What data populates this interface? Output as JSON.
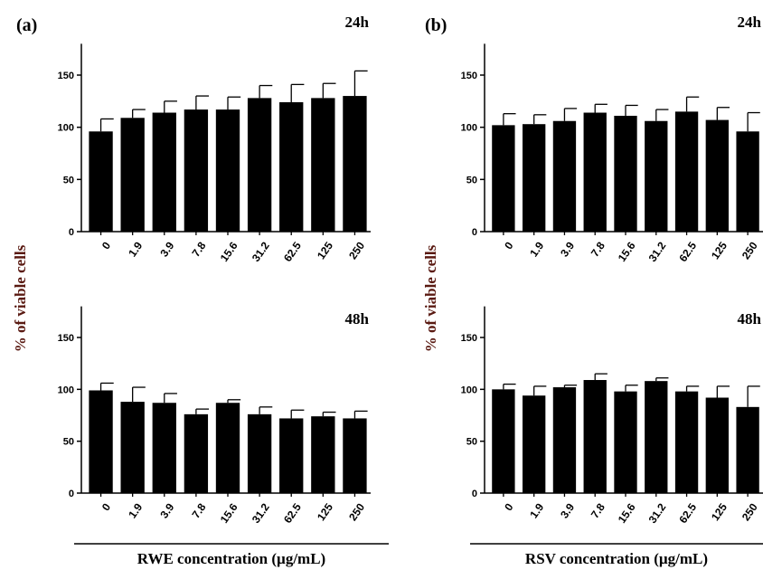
{
  "chart_data": [
    {
      "type": "bar",
      "panel": "(a)",
      "timepoint": "24h",
      "categories": [
        "0",
        "1.9",
        "3.9",
        "7.8",
        "15.6",
        "31.2",
        "62.5",
        "125",
        "250"
      ],
      "values": [
        96,
        109,
        114,
        117,
        117,
        128,
        124,
        128,
        130
      ],
      "errors": [
        12,
        8,
        11,
        13,
        12,
        12,
        17,
        14,
        24
      ],
      "ylabel": "% of viable cells",
      "yticks": [
        0,
        50,
        100,
        150
      ],
      "ylim": [
        0,
        180
      ],
      "color": "#000000"
    },
    {
      "type": "bar",
      "panel": "(b)",
      "timepoint": "24h",
      "categories": [
        "0",
        "1.9",
        "3.9",
        "7.8",
        "15.6",
        "31.2",
        "62.5",
        "125",
        "250"
      ],
      "values": [
        102,
        103,
        106,
        114,
        111,
        106,
        115,
        107,
        96
      ],
      "errors": [
        11,
        9,
        12,
        8,
        10,
        11,
        14,
        12,
        18
      ],
      "ylabel": "% of viable cells",
      "yticks": [
        0,
        50,
        100,
        150
      ],
      "ylim": [
        0,
        180
      ],
      "color": "#000000"
    },
    {
      "type": "bar",
      "panel": "(a)",
      "timepoint": "48h",
      "categories": [
        "0",
        "1.9",
        "3.9",
        "7.8",
        "15.6",
        "31.2",
        "62.5",
        "125",
        "250"
      ],
      "values": [
        99,
        88,
        87,
        76,
        87,
        76,
        72,
        74,
        72
      ],
      "errors": [
        7,
        14,
        9,
        5,
        3,
        7,
        8,
        4,
        7
      ],
      "xlabel": "RWE concentration (µg/mL)",
      "yticks": [
        0,
        50,
        100,
        150
      ],
      "ylim": [
        0,
        180
      ],
      "color": "#000000"
    },
    {
      "type": "bar",
      "panel": "(b)",
      "timepoint": "48h",
      "categories": [
        "0",
        "1.9",
        "3.9",
        "7.8",
        "15.6",
        "31.2",
        "62.5",
        "125",
        "250"
      ],
      "values": [
        100,
        94,
        102,
        109,
        98,
        108,
        98,
        92,
        83
      ],
      "errors": [
        5,
        9,
        2,
        6,
        6,
        3,
        5,
        11,
        20
      ],
      "xlabel": "RSV concentration (µg/mL)",
      "yticks": [
        0,
        50,
        100,
        150
      ],
      "ylim": [
        0,
        180
      ],
      "color": "#000000"
    }
  ]
}
